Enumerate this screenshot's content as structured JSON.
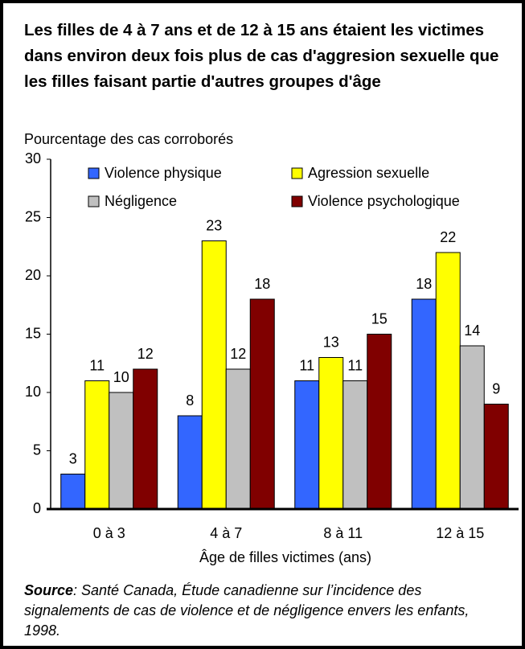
{
  "chart_data": {
    "type": "bar",
    "title": "Les filles de 4 à 7 ans et de 12 à 15 ans étaient les victimes dans environ deux fois plus de cas d'aggresion sexuelle que les filles faisant partie d'autres groupes d'âge",
    "y_axis_label": "Pourcentage des cas corroborés",
    "x_axis_label": "Âge de filles victimes (ans)",
    "categories": [
      "0 à 3",
      "4 à 7",
      "8 à 11",
      "12 à 15"
    ],
    "series": [
      {
        "name": "Violence physique",
        "color": "#3366ff",
        "values": [
          3,
          8,
          11,
          18
        ]
      },
      {
        "name": "Agression sexuelle",
        "color": "#ffff00",
        "values": [
          11,
          23,
          13,
          22
        ]
      },
      {
        "name": "Négligence",
        "color": "#c0c0c0",
        "values": [
          10,
          12,
          11,
          14
        ]
      },
      {
        "name": "Violence psychologique",
        "color": "#800000",
        "values": [
          12,
          18,
          15,
          9
        ]
      }
    ],
    "ylim": [
      0,
      30
    ],
    "yticks": [
      0,
      5,
      10,
      15,
      20,
      25,
      30
    ],
    "grid": false,
    "legend": "top",
    "source_label": "Source",
    "source_text": ":  Santé Canada, Étude canadienne sur l’incidence des signalements de cas de violence et de négligence envers les enfants, 1998."
  }
}
